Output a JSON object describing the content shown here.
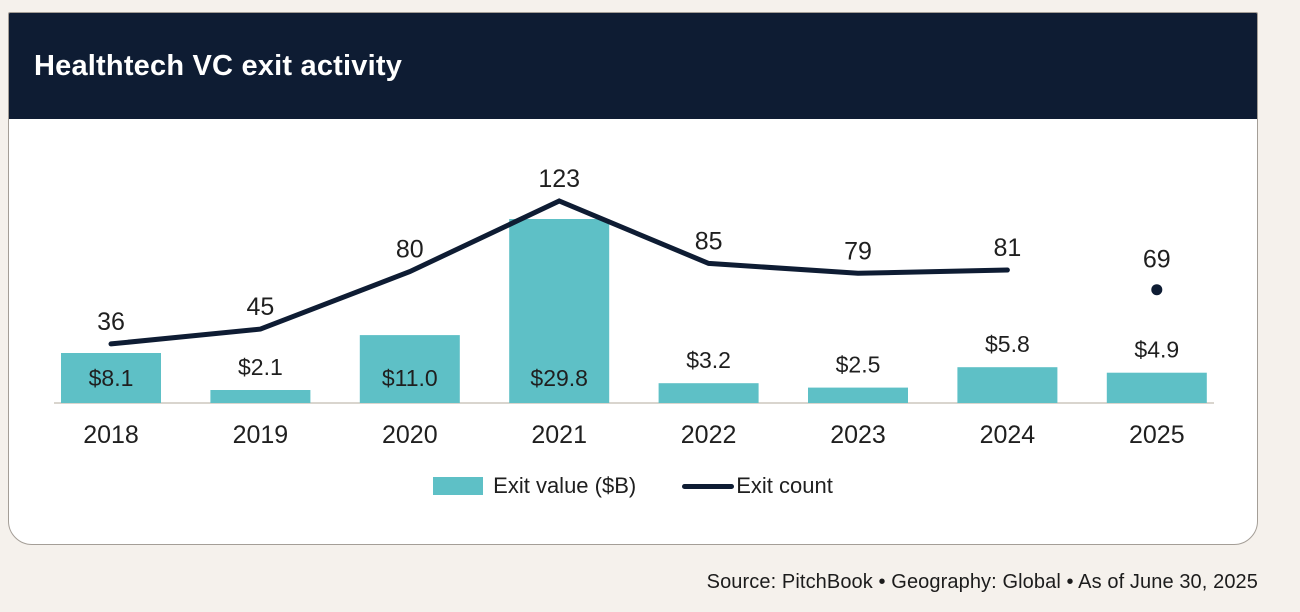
{
  "header": {
    "title": "Healthtech VC exit activity"
  },
  "chart_data": {
    "type": "bar+line",
    "title": "Healthtech VC exit activity",
    "categories": [
      "2018",
      "2019",
      "2020",
      "2021",
      "2022",
      "2023",
      "2024",
      "2025"
    ],
    "series": [
      {
        "name": "Exit value ($B)",
        "type": "bar",
        "values": [
          8.1,
          2.1,
          11.0,
          29.8,
          3.2,
          2.5,
          5.8,
          4.9
        ],
        "labels": [
          "$8.1",
          "$2.1",
          "$11.0",
          "$29.8",
          "$3.2",
          "$2.5",
          "$5.8",
          "$4.9"
        ],
        "color": "#5ec0c6"
      },
      {
        "name": "Exit count",
        "type": "line",
        "values": [
          36,
          45,
          80,
          123,
          85,
          79,
          81,
          69
        ],
        "color": "#0e1c33",
        "last_point_detached_dot": true
      }
    ],
    "xlabel": "",
    "ylabel": "",
    "legend_position": "bottom",
    "gridlines": false,
    "y_axis_visible": false
  },
  "footer": {
    "source": "Source: PitchBook  •  Geography: Global  •  As of June 30, 2025"
  },
  "colors": {
    "navy": "#0e1c33",
    "teal": "#5ec0c6",
    "page_bg": "#f5f1ec",
    "card_bg": "#ffffff",
    "card_border": "#a49e97",
    "axis_line": "#d9d5ce",
    "label_text": "#1f1f1f"
  }
}
